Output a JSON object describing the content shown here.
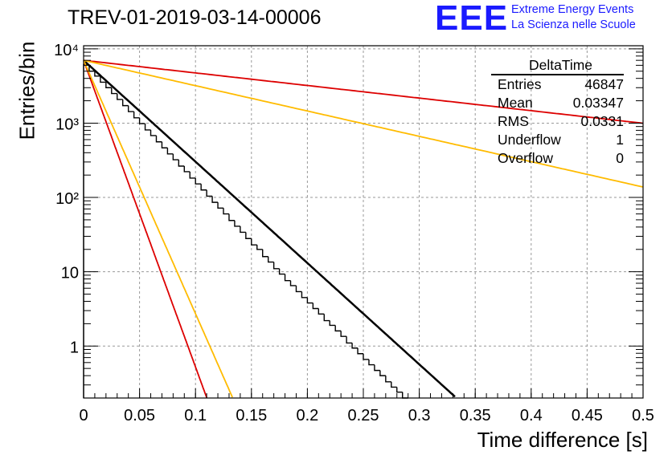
{
  "title": "TREV-01-2019-03-14-00006",
  "logo": {
    "mark": "EEE",
    "line1": "Extreme Energy Events",
    "line2": "La Scienza nelle Scuole",
    "color": "#1a1aff"
  },
  "stats": {
    "name": "DeltaTime",
    "rows": [
      {
        "label": "Entries",
        "value": "46847"
      },
      {
        "label": "Mean",
        "value": "0.03347"
      },
      {
        "label": "RMS",
        "value": "0.0331"
      },
      {
        "label": "Underflow",
        "value": "1"
      },
      {
        "label": "Overflow",
        "value": "0"
      }
    ]
  },
  "chart_data": {
    "type": "line",
    "xlabel": "Time difference [s]",
    "ylabel": "Entries/bin",
    "xlim": [
      0,
      0.5
    ],
    "ylim": [
      0.2,
      11000
    ],
    "y_scale": "log",
    "grid": true,
    "x_ticks": [
      {
        "value": 0,
        "label": "0"
      },
      {
        "value": 0.05,
        "label": "0.05"
      },
      {
        "value": 0.1,
        "label": "0.1"
      },
      {
        "value": 0.15,
        "label": "0.15"
      },
      {
        "value": 0.2,
        "label": "0.2"
      },
      {
        "value": 0.25,
        "label": "0.25"
      },
      {
        "value": 0.3,
        "label": "0.3"
      },
      {
        "value": 0.35,
        "label": "0.35"
      },
      {
        "value": 0.4,
        "label": "0.4"
      },
      {
        "value": 0.45,
        "label": "0.45"
      },
      {
        "value": 0.5,
        "label": "0.5"
      }
    ],
    "y_ticks": [
      {
        "value": 1,
        "label": "1"
      },
      {
        "value": 10,
        "label": "10"
      },
      {
        "value": 100,
        "label": "10²"
      },
      {
        "value": 1000,
        "label": "10³"
      },
      {
        "value": 10000,
        "label": "10⁴"
      }
    ],
    "histogram": {
      "color": "#000000",
      "bins": [
        [
          0.0,
          0.005,
          6100
        ],
        [
          0.005,
          0.01,
          5000
        ],
        [
          0.01,
          0.015,
          4300
        ],
        [
          0.015,
          0.02,
          3550
        ],
        [
          0.02,
          0.025,
          3000
        ],
        [
          0.025,
          0.03,
          2500
        ],
        [
          0.03,
          0.035,
          2080
        ],
        [
          0.035,
          0.04,
          1720
        ],
        [
          0.04,
          0.045,
          1430
        ],
        [
          0.045,
          0.05,
          1180
        ],
        [
          0.05,
          0.055,
          985
        ],
        [
          0.055,
          0.06,
          810
        ],
        [
          0.06,
          0.065,
          680
        ],
        [
          0.065,
          0.07,
          560
        ],
        [
          0.07,
          0.075,
          465
        ],
        [
          0.075,
          0.08,
          385
        ],
        [
          0.08,
          0.085,
          322
        ],
        [
          0.085,
          0.09,
          264
        ],
        [
          0.09,
          0.095,
          222
        ],
        [
          0.095,
          0.1,
          182
        ],
        [
          0.1,
          0.105,
          152
        ],
        [
          0.105,
          0.11,
          126
        ],
        [
          0.11,
          0.115,
          104
        ],
        [
          0.115,
          0.12,
          86
        ],
        [
          0.12,
          0.125,
          72
        ],
        [
          0.125,
          0.13,
          60
        ],
        [
          0.13,
          0.135,
          49
        ],
        [
          0.135,
          0.14,
          41
        ],
        [
          0.14,
          0.145,
          34
        ],
        [
          0.145,
          0.15,
          28
        ],
        [
          0.15,
          0.155,
          23
        ],
        [
          0.155,
          0.16,
          20
        ],
        [
          0.16,
          0.165,
          16
        ],
        [
          0.165,
          0.17,
          13.5
        ],
        [
          0.17,
          0.175,
          11
        ],
        [
          0.175,
          0.18,
          9.3
        ],
        [
          0.18,
          0.185,
          7.6
        ],
        [
          0.185,
          0.19,
          6.5
        ],
        [
          0.19,
          0.195,
          5.4
        ],
        [
          0.195,
          0.2,
          4.5
        ],
        [
          0.2,
          0.205,
          3.8
        ],
        [
          0.205,
          0.21,
          3.2
        ],
        [
          0.21,
          0.215,
          2.7
        ],
        [
          0.215,
          0.22,
          2.2
        ],
        [
          0.22,
          0.225,
          1.9
        ],
        [
          0.225,
          0.23,
          1.6
        ],
        [
          0.23,
          0.235,
          1.35
        ],
        [
          0.235,
          0.24,
          1.1
        ],
        [
          0.24,
          0.245,
          0.94
        ],
        [
          0.245,
          0.25,
          0.79
        ],
        [
          0.25,
          0.255,
          0.66
        ],
        [
          0.255,
          0.26,
          0.56
        ],
        [
          0.26,
          0.265,
          0.47
        ],
        [
          0.265,
          0.27,
          0.4
        ],
        [
          0.27,
          0.275,
          0.33
        ],
        [
          0.275,
          0.28,
          0.28
        ],
        [
          0.28,
          0.285,
          0.24
        ],
        [
          0.285,
          0.29,
          0.2
        ]
      ]
    },
    "series": [
      {
        "color": "#000000",
        "width": 2.5,
        "x_min": 0,
        "x_max": 0.355,
        "y_at_0": 7000,
        "slope_per_s": 31.4
      },
      {
        "color": "#dd0000",
        "width": 1.8,
        "x_min": 0,
        "x_max": 0.5,
        "y_at_0": 7000,
        "slope_per_s": 3.9
      },
      {
        "color": "#ffbb00",
        "width": 1.8,
        "x_min": 0,
        "x_max": 0.5,
        "y_at_0": 7000,
        "slope_per_s": 7.85
      },
      {
        "color": "#dd0000",
        "width": 1.8,
        "x_min": 0,
        "x_max": 0.11,
        "y_at_0": 7000,
        "slope_per_s": 95
      },
      {
        "color": "#ffbb00",
        "width": 1.8,
        "x_min": 0,
        "x_max": 0.14,
        "y_at_0": 7000,
        "slope_per_s": 78.5
      }
    ]
  }
}
